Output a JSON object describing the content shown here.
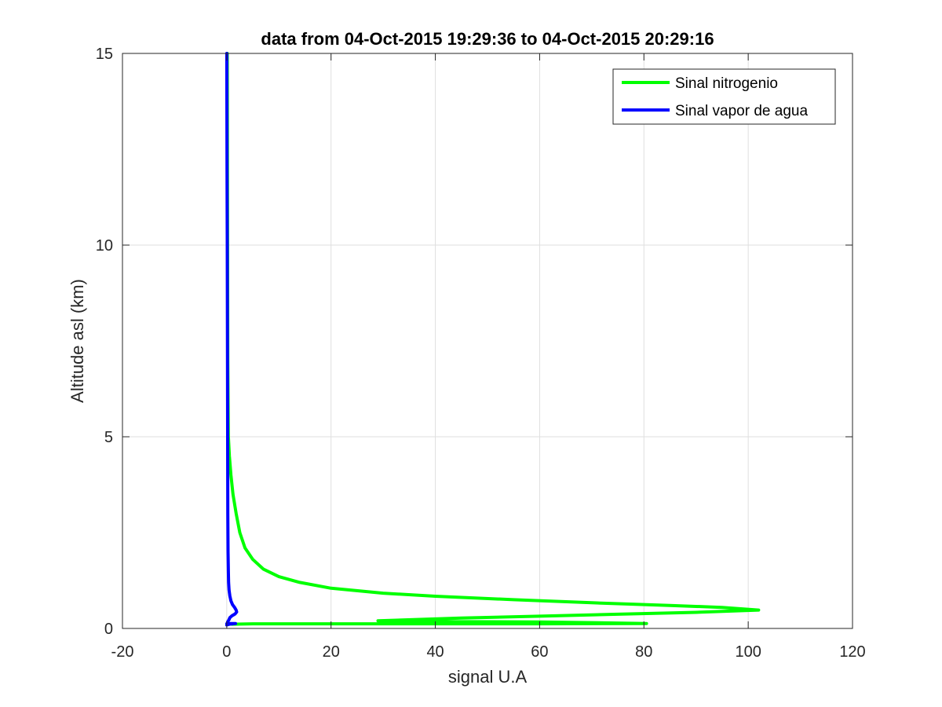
{
  "chart_data": {
    "type": "line",
    "title": "data from 04-Oct-2015 19:29:36 to 04-Oct-2015 20:29:16",
    "xlabel": "signal U.A",
    "ylabel": "Altitude asl (km)",
    "xlim": [
      -20,
      120
    ],
    "ylim": [
      0,
      15
    ],
    "xticks": [
      "-20",
      "0",
      "20",
      "40",
      "60",
      "80",
      "100",
      "120"
    ],
    "yticks": [
      "0",
      "5",
      "10",
      "15"
    ],
    "grid": true,
    "legend_position": "top-right",
    "series": [
      {
        "name": "Sinal nitrogenio",
        "color": "#00ff00",
        "points": [
          [
            0.1,
            15
          ],
          [
            0.15,
            10
          ],
          [
            0.2,
            7
          ],
          [
            0.3,
            5
          ],
          [
            0.5,
            4.5
          ],
          [
            0.8,
            4
          ],
          [
            1.2,
            3.5
          ],
          [
            1.8,
            3
          ],
          [
            2.5,
            2.5
          ],
          [
            3.5,
            2.1
          ],
          [
            5,
            1.8
          ],
          [
            7,
            1.55
          ],
          [
            10,
            1.35
          ],
          [
            14,
            1.2
          ],
          [
            20,
            1.05
          ],
          [
            30,
            0.92
          ],
          [
            40,
            0.84
          ],
          [
            55,
            0.75
          ],
          [
            70,
            0.67
          ],
          [
            85,
            0.6
          ],
          [
            95,
            0.55
          ],
          [
            102,
            0.48
          ],
          [
            90,
            0.42
          ],
          [
            75,
            0.37
          ],
          [
            60,
            0.32
          ],
          [
            45,
            0.27
          ],
          [
            29,
            0.2
          ],
          [
            40,
            0.18
          ],
          [
            60,
            0.17
          ],
          [
            80.5,
            0.13
          ],
          [
            60,
            0.12
          ],
          [
            40,
            0.12
          ],
          [
            20,
            0.12
          ],
          [
            5,
            0.12
          ],
          [
            1,
            0.11
          ]
        ]
      },
      {
        "name": "Sinal vapor de agua",
        "color": "#0000ff",
        "points": [
          [
            0.0,
            15
          ],
          [
            0.05,
            12
          ],
          [
            0.1,
            10
          ],
          [
            0.12,
            8
          ],
          [
            0.15,
            6
          ],
          [
            0.18,
            4
          ],
          [
            0.2,
            3
          ],
          [
            0.25,
            2
          ],
          [
            0.3,
            1.5
          ],
          [
            0.35,
            1.2
          ],
          [
            0.45,
            1.0
          ],
          [
            0.6,
            0.85
          ],
          [
            0.8,
            0.72
          ],
          [
            1.1,
            0.62
          ],
          [
            1.5,
            0.55
          ],
          [
            1.8,
            0.48
          ],
          [
            1.9,
            0.43
          ],
          [
            1.6,
            0.38
          ],
          [
            1.0,
            0.33
          ],
          [
            0.6,
            0.28
          ],
          [
            0.4,
            0.22
          ],
          [
            0.2,
            0.18
          ],
          [
            0.1,
            0.14
          ],
          [
            0.0,
            0.09
          ],
          [
            0.5,
            0.11
          ],
          [
            1.7,
            0.13
          ],
          [
            0.3,
            0.13
          ],
          [
            0.0,
            0.12
          ]
        ]
      }
    ]
  }
}
